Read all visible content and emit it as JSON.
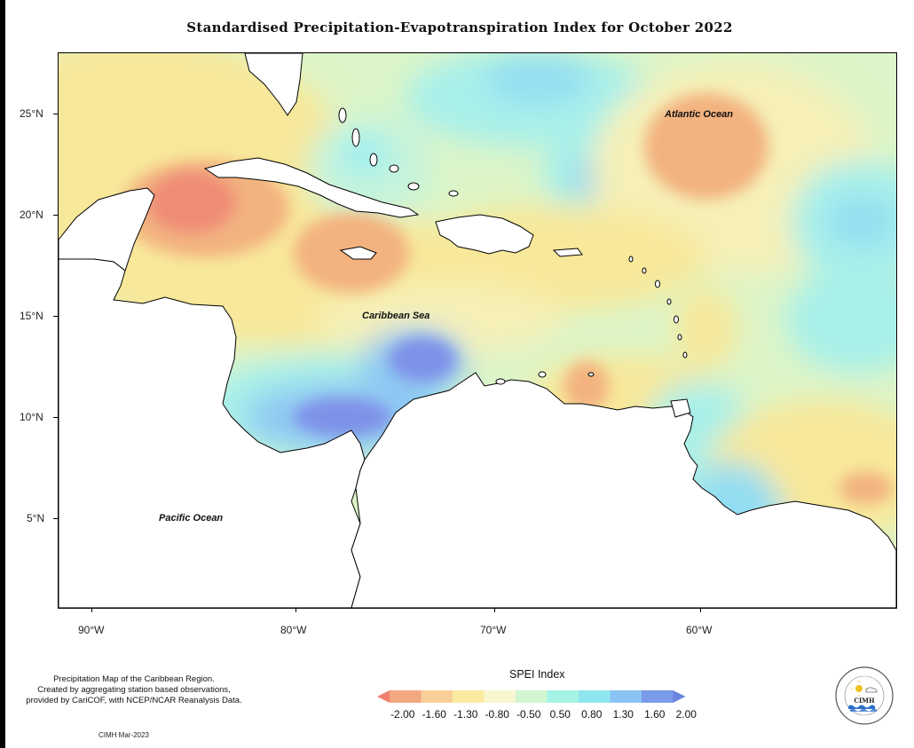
{
  "title": "Standardised Precipitation-Evapotranspiration Index for October 2022",
  "map": {
    "latitude_labels": [
      "25°N",
      "20°N",
      "15°N",
      "10°N",
      "5°N"
    ],
    "longitude_labels": [
      "90°W",
      "80°W",
      "70°W",
      "60°W"
    ],
    "region_labels": {
      "atlantic": "Atlantic Ocean",
      "caribbean": "Caribbean Sea",
      "pacific": "Pacific Ocean"
    }
  },
  "description": {
    "line1": "Precipitation Map of the Caribbean Region.",
    "line2": "Created by aggregating station based observations,",
    "line3": "provided by CariCOF, with NCEP/NCAR Reanalysis Data."
  },
  "credit": "CIMH Mar-2023",
  "legend": {
    "title": "SPEI Index",
    "ticks": [
      "-2.00",
      "-1.60",
      "-1.30",
      "-0.80",
      "-0.50",
      "0.50",
      "0.80",
      "1.30",
      "1.60",
      "2.00"
    ],
    "colors": [
      "#f08070",
      "#f3a882",
      "#f9cf98",
      "#fbeba2",
      "#f7f6cf",
      "#d0f7d0",
      "#a6f3e6",
      "#8fe6ef",
      "#8ac4f4",
      "#7a9be8",
      "#6b84e0"
    ]
  },
  "logo": {
    "acronym": "CIMH"
  }
}
